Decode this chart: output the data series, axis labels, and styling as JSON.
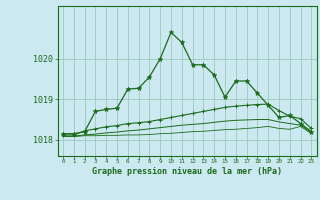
{
  "xlabel": "Graphe pression niveau de la mer (hPa)",
  "background_color": "#cce8f0",
  "grid_color": "#99ccbb",
  "line_color": "#1a6b1a",
  "ylim": [
    1017.6,
    1021.3
  ],
  "yticks": [
    1018,
    1019,
    1020
  ],
  "line1_x": [
    0,
    1,
    2,
    3,
    4,
    5,
    6,
    7,
    8,
    9,
    10,
    11,
    12,
    13,
    14,
    15,
    16,
    17,
    18,
    19,
    20,
    21,
    22,
    23
  ],
  "line1_y": [
    1018.15,
    1018.15,
    1018.2,
    1018.7,
    1018.75,
    1018.78,
    1019.25,
    1019.27,
    1019.55,
    1020.0,
    1020.65,
    1020.4,
    1019.85,
    1019.85,
    1019.6,
    1019.05,
    1019.45,
    1019.45,
    1019.15,
    1018.85,
    1018.55,
    1018.6,
    1018.4,
    1018.2
  ],
  "line2_x": [
    0,
    1,
    2,
    3,
    4,
    5,
    6,
    7,
    8,
    9,
    10,
    11,
    12,
    13,
    14,
    15,
    16,
    17,
    18,
    19,
    20,
    21,
    22,
    23
  ],
  "line2_y": [
    1018.12,
    1018.12,
    1018.22,
    1018.27,
    1018.32,
    1018.35,
    1018.4,
    1018.42,
    1018.45,
    1018.5,
    1018.55,
    1018.6,
    1018.65,
    1018.7,
    1018.75,
    1018.8,
    1018.83,
    1018.85,
    1018.87,
    1018.88,
    1018.72,
    1018.58,
    1018.52,
    1018.28
  ],
  "line3_x": [
    0,
    1,
    2,
    3,
    4,
    5,
    6,
    7,
    8,
    9,
    10,
    11,
    12,
    13,
    14,
    15,
    16,
    17,
    18,
    19,
    20,
    21,
    22,
    23
  ],
  "line3_y": [
    1018.09,
    1018.09,
    1018.12,
    1018.14,
    1018.17,
    1018.19,
    1018.22,
    1018.24,
    1018.27,
    1018.3,
    1018.33,
    1018.36,
    1018.38,
    1018.4,
    1018.43,
    1018.46,
    1018.48,
    1018.49,
    1018.5,
    1018.5,
    1018.44,
    1018.4,
    1018.36,
    1018.18
  ],
  "line4_x": [
    0,
    1,
    2,
    3,
    4,
    5,
    6,
    7,
    8,
    9,
    10,
    11,
    12,
    13,
    14,
    15,
    16,
    17,
    18,
    19,
    20,
    21,
    22,
    23
  ],
  "line4_y": [
    1018.08,
    1018.08,
    1018.1,
    1018.1,
    1018.11,
    1018.11,
    1018.12,
    1018.12,
    1018.13,
    1018.15,
    1018.16,
    1018.18,
    1018.2,
    1018.21,
    1018.23,
    1018.25,
    1018.26,
    1018.28,
    1018.3,
    1018.33,
    1018.28,
    1018.26,
    1018.33,
    1018.15
  ]
}
